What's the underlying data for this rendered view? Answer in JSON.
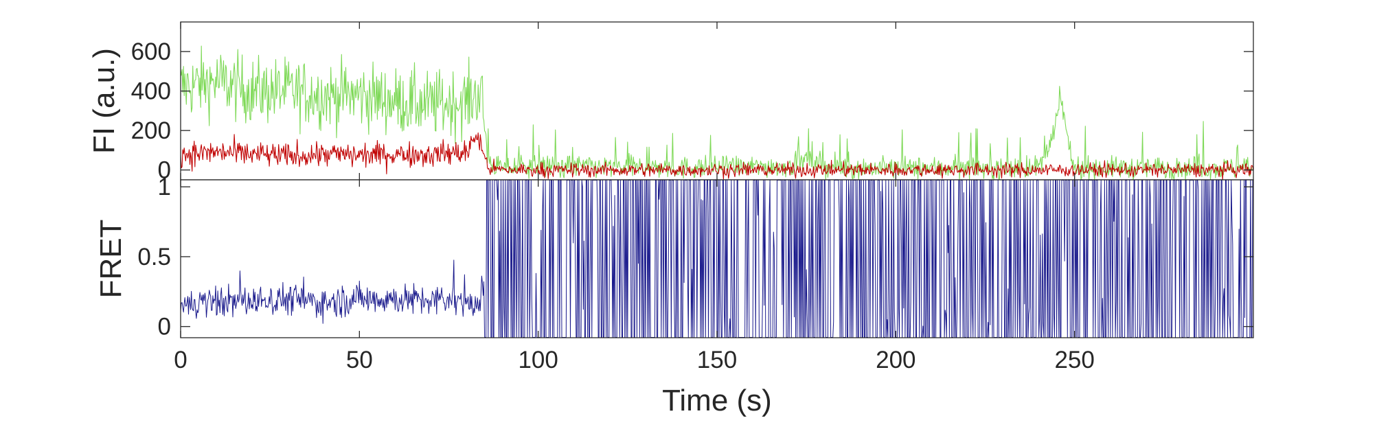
{
  "chart_data": [
    {
      "type": "line",
      "panel": "top",
      "ylabel": "FI (a.u.)",
      "xlim": [
        0,
        300
      ],
      "ylim": [
        -50,
        750
      ],
      "yticks": [
        0,
        200,
        400,
        600
      ],
      "series": [
        {
          "color": "#7ed957",
          "x": [
            0,
            10,
            20,
            30,
            40,
            50,
            60,
            70,
            80,
            84,
            86,
            90,
            100,
            110,
            120,
            130,
            140,
            150,
            160,
            170,
            175,
            180,
            190,
            200,
            210,
            220,
            230,
            240,
            244,
            246,
            249,
            250,
            260,
            270,
            280,
            290,
            300
          ],
          "y": [
            420,
            450,
            400,
            400,
            380,
            380,
            350,
            330,
            350,
            400,
            40,
            10,
            20,
            20,
            15,
            15,
            10,
            15,
            15,
            20,
            50,
            15,
            10,
            10,
            10,
            10,
            10,
            15,
            150,
            380,
            50,
            10,
            10,
            10,
            10,
            10,
            10
          ]
        },
        {
          "color": "#c00000",
          "x": [
            0,
            10,
            20,
            30,
            40,
            50,
            60,
            70,
            80,
            83,
            86,
            90,
            100,
            110,
            120,
            130,
            140,
            150,
            160,
            170,
            180,
            190,
            200,
            210,
            220,
            230,
            240,
            250,
            260,
            270,
            280,
            290,
            300
          ],
          "y": [
            80,
            90,
            80,
            70,
            80,
            75,
            80,
            80,
            90,
            180,
            10,
            0,
            0,
            0,
            0,
            0,
            0,
            0,
            0,
            0,
            0,
            0,
            0,
            0,
            0,
            0,
            0,
            0,
            0,
            0,
            0,
            0,
            0
          ]
        }
      ]
    },
    {
      "type": "line",
      "panel": "bottom",
      "xlabel": "Time (s)",
      "ylabel": "FRET",
      "xlim": [
        0,
        300
      ],
      "ylim": [
        -0.08,
        1.05
      ],
      "xticks": [
        0,
        50,
        100,
        150,
        200,
        250
      ],
      "yticks": [
        0,
        0.5,
        1
      ],
      "ytick_labels": [
        "0",
        "0.5",
        "1"
      ],
      "series": [
        {
          "color": "#1a1a8c",
          "x": [
            0,
            10,
            20,
            30,
            40,
            50,
            60,
            70,
            80,
            83,
            86,
            90,
            100,
            110,
            120,
            130,
            140,
            150,
            160,
            170,
            180,
            190,
            200,
            210,
            220,
            230,
            240,
            250,
            260,
            270,
            280,
            290,
            300
          ],
          "y": [
            0.15,
            0.18,
            0.18,
            0.2,
            0.17,
            0.2,
            0.2,
            0.18,
            0.2,
            0.1,
            0.5,
            0.5,
            0.5,
            0.5,
            0.5,
            0.5,
            0.5,
            0.5,
            0.5,
            0.5,
            0.5,
            0.5,
            0.5,
            0.5,
            0.5,
            0.5,
            0.5,
            0.5,
            0.5,
            0.5,
            0.5,
            0.5,
            0.5
          ]
        }
      ]
    }
  ]
}
